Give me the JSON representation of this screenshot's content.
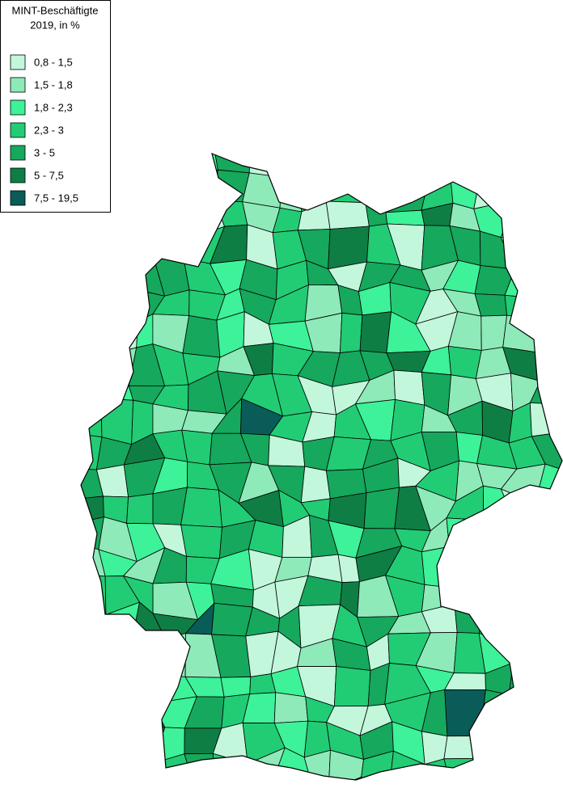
{
  "legend": {
    "title": [
      "MINT-Beschäftigte",
      "2019, in %"
    ],
    "items": [
      {
        "label": "0,8 - 1,5",
        "color": "#c2f7dc"
      },
      {
        "label": "1,5 - 1,8",
        "color": "#8eeab9"
      },
      {
        "label": "1,8 - 2,3",
        "color": "#3df298"
      },
      {
        "label": "2,3 - 3",
        "color": "#22cc74"
      },
      {
        "label": "3 - 5",
        "color": "#16a85c"
      },
      {
        "label": "5 - 7,5",
        "color": "#0f7e45"
      },
      {
        "label": "7,5 - 19,5",
        "color": "#0a5c58"
      }
    ]
  }
}
